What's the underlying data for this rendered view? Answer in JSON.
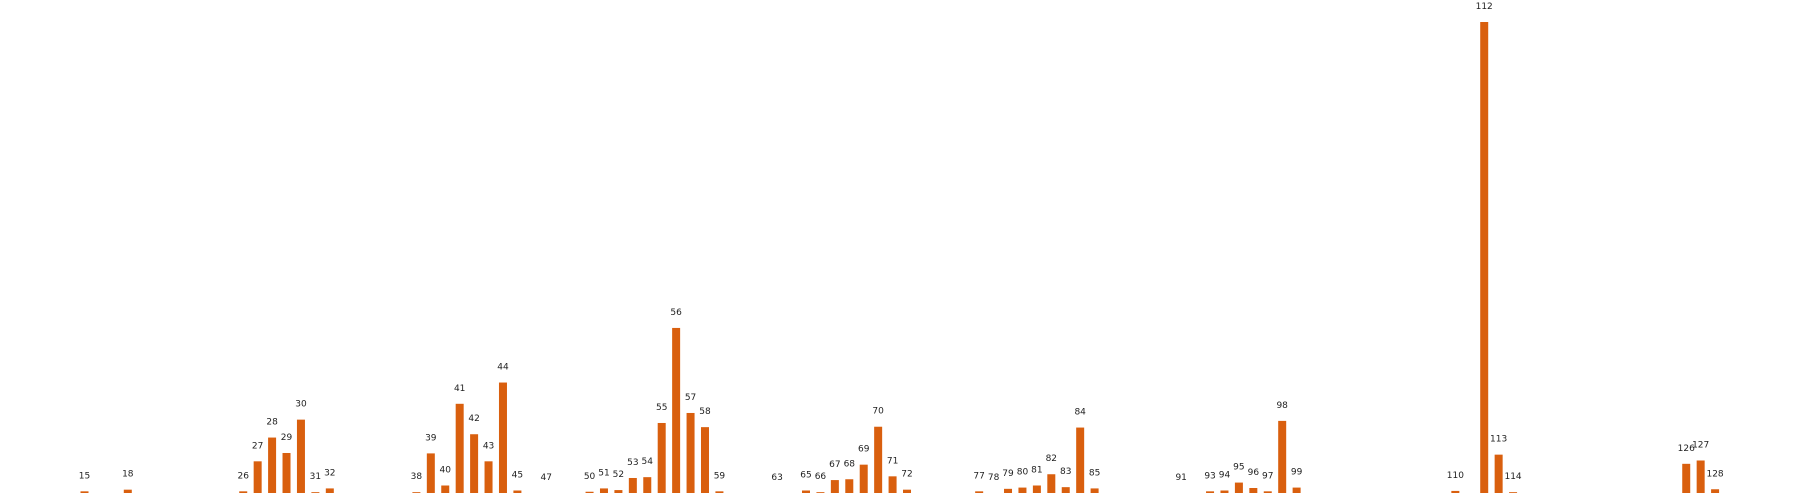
{
  "chart_data": {
    "type": "bar",
    "title": "",
    "xlabel": "",
    "ylabel": "",
    "ylim": [
      0,
      117
    ],
    "color": "#d95f0e",
    "axes_visible": false,
    "grid": false,
    "categories": [
      "15",
      "18",
      "26",
      "27",
      "28",
      "29",
      "30",
      "31",
      "32",
      "38",
      "39",
      "40",
      "41",
      "42",
      "43",
      "44",
      "45",
      "47",
      "50",
      "51",
      "52",
      "53",
      "54",
      "55",
      "56",
      "57",
      "58",
      "59",
      "63",
      "65",
      "66",
      "67",
      "68",
      "69",
      "70",
      "71",
      "72",
      "77",
      "78",
      "79",
      "80",
      "81",
      "82",
      "83",
      "84",
      "85",
      "91",
      "93",
      "94",
      "95",
      "96",
      "97",
      "98",
      "99",
      "110",
      "112",
      "113",
      "114",
      "126",
      "127",
      "128"
    ],
    "values": [
      0.4,
      0.8,
      0.4,
      7.6,
      13.3,
      9.6,
      17.6,
      0.2,
      1.1,
      0.2,
      9.5,
      1.8,
      21.4,
      14.1,
      7.6,
      26.5,
      0.6,
      0.0,
      0.3,
      1.1,
      0.7,
      3.6,
      3.8,
      16.8,
      39.6,
      19.2,
      15.8,
      0.4,
      0.0,
      0.6,
      0.2,
      3.1,
      3.3,
      6.8,
      15.9,
      4.0,
      0.8,
      0.4,
      0.0,
      1.0,
      1.3,
      1.8,
      4.5,
      1.4,
      15.7,
      1.1,
      0.0,
      0.4,
      0.6,
      2.5,
      1.2,
      0.4,
      17.3,
      1.3,
      0.5,
      113.0,
      9.2,
      0.2,
      7.0,
      7.8,
      0.9
    ]
  }
}
